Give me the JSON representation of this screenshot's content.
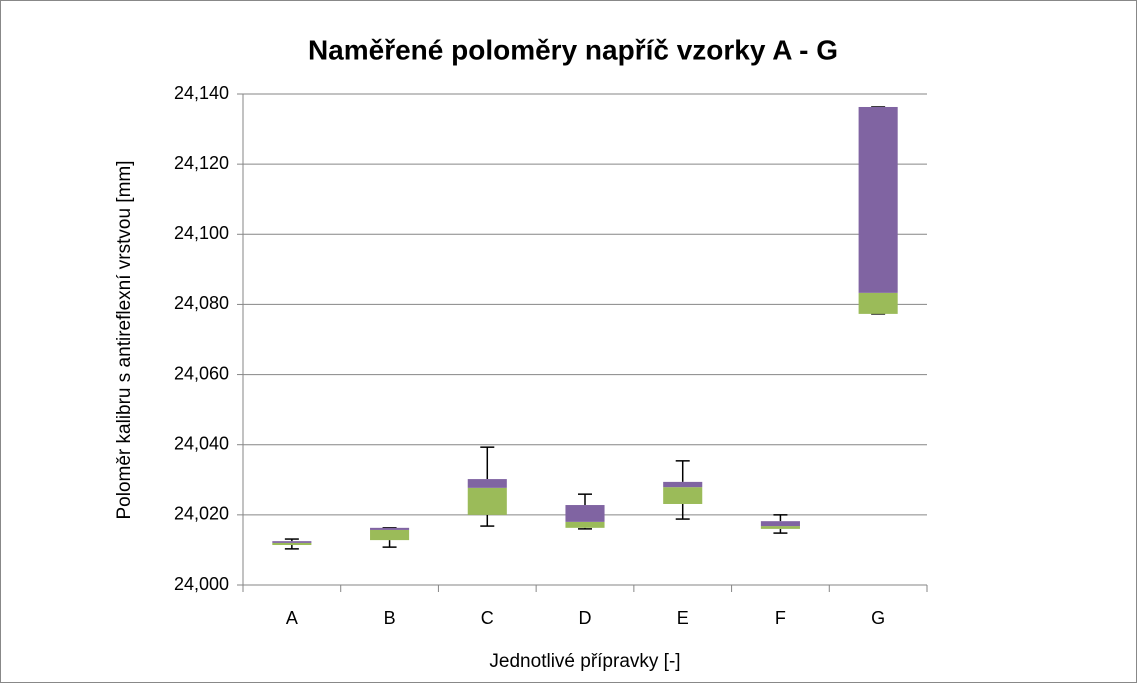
{
  "chart_data": {
    "type": "box",
    "title": "Naměřené poloměry napříč vzorky A - G",
    "x_label": "Jednotlivé přípravky [-]",
    "y_label": "Poloměr kalibru s antireflexní vrstvou [mm]",
    "categories": [
      "A",
      "B",
      "C",
      "D",
      "E",
      "F",
      "G"
    ],
    "min": [
      24.0103,
      24.0108,
      24.0168,
      24.016,
      24.0188,
      24.0148,
      24.0773
    ],
    "q1": [
      24.0114,
      24.0128,
      24.02,
      24.0163,
      24.0231,
      24.016,
      24.0773
    ],
    "median": [
      24.012,
      24.0157,
      24.0277,
      24.018,
      24.0279,
      24.0168,
      24.0833
    ],
    "q3": [
      24.0125,
      24.0163,
      24.0302,
      24.0228,
      24.0294,
      24.0182,
      24.1363
    ],
    "max": [
      24.0131,
      24.0163,
      24.0393,
      24.0259,
      24.0354,
      24.02,
      24.1363
    ],
    "lower_color": "#9bbb59",
    "upper_color": "#8064a2",
    "whisker_color": "#000000",
    "ylim": [
      24.0,
      24.14
    ],
    "yticks": [
      {
        "value": 24.0,
        "label": "24,000"
      },
      {
        "value": 24.02,
        "label": "24,020"
      },
      {
        "value": 24.04,
        "label": "24,040"
      },
      {
        "value": 24.06,
        "label": "24,060"
      },
      {
        "value": 24.08,
        "label": "24,080"
      },
      {
        "value": 24.1,
        "label": "24,100"
      },
      {
        "value": 24.12,
        "label": "24,120"
      },
      {
        "value": 24.14,
        "label": "24,140"
      }
    ],
    "grid": true
  }
}
